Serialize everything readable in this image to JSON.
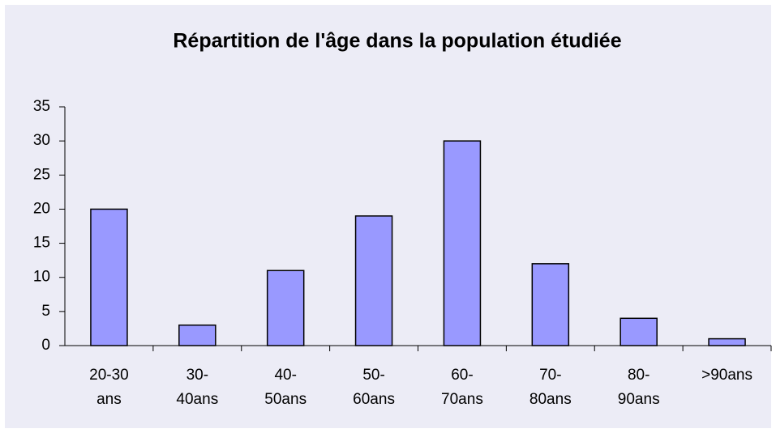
{
  "chart_data": {
    "type": "bar",
    "title": "Répartition de l'âge dans la population étudiée",
    "categories": [
      "20-30 ans",
      "30-40ans",
      "40-50ans",
      "50-60ans",
      "60-70ans",
      "70-80ans",
      "80-90ans",
      ">90ans"
    ],
    "values": [
      20,
      3,
      11,
      19,
      30,
      12,
      4,
      1
    ],
    "color": "#9999ff",
    "ylim": [
      0,
      35
    ],
    "yticks": [
      0,
      5,
      10,
      15,
      20,
      25,
      30,
      35
    ],
    "grid": false
  }
}
